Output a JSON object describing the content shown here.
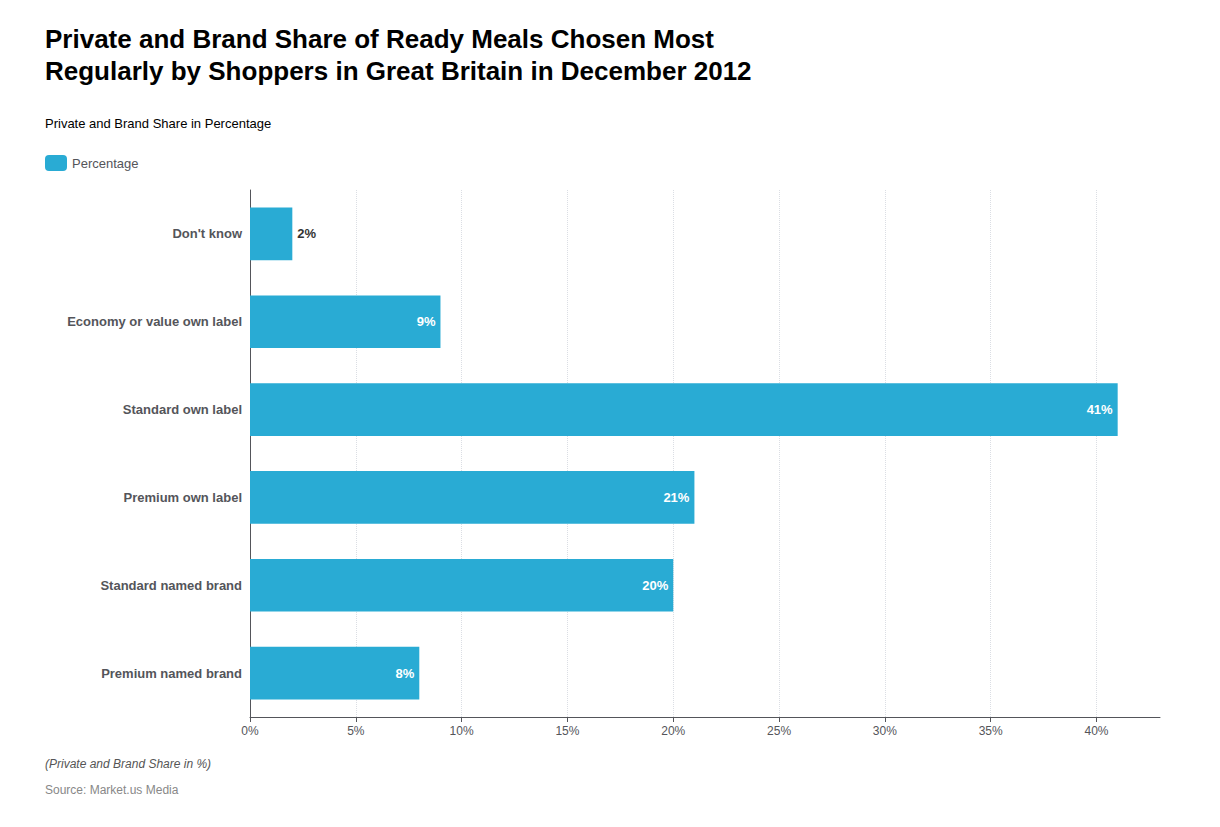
{
  "chart_data": {
    "type": "bar",
    "orientation": "horizontal",
    "title": "Private and Brand Share of Ready Meals Chosen Most\nRegularly by Shoppers in Great Britain in December 2012",
    "subtitle": "Private and Brand Share in Percentage",
    "annotations": [
      "(Private and Brand Share in %)",
      "Source: Market.us Media"
    ],
    "series": [
      {
        "name": "Percentage",
        "color": "#29ABD4",
        "values": [
          2,
          9,
          41,
          21,
          20,
          8
        ],
        "value_labels": [
          "2%",
          "9%",
          "41%",
          "21%",
          "20%",
          "8%"
        ]
      }
    ],
    "categories": [
      "Don't know",
      "Economy or value own label",
      "Standard own label",
      "Premium own label",
      "Standard named brand",
      "Premium named brand"
    ],
    "xlim": [
      0,
      43
    ],
    "xticks": [
      {
        "value": 0,
        "label": "0%"
      },
      {
        "value": 5,
        "label": "5%"
      },
      {
        "value": 10,
        "label": "10%"
      },
      {
        "value": 15,
        "label": "15%"
      },
      {
        "value": 20,
        "label": "20%"
      },
      {
        "value": 25,
        "label": "25%"
      },
      {
        "value": 30,
        "label": "30%"
      },
      {
        "value": 35,
        "label": "35%"
      },
      {
        "value": 40,
        "label": "40%"
      }
    ],
    "grid": true,
    "legend": "upper left",
    "data_labels": true
  }
}
